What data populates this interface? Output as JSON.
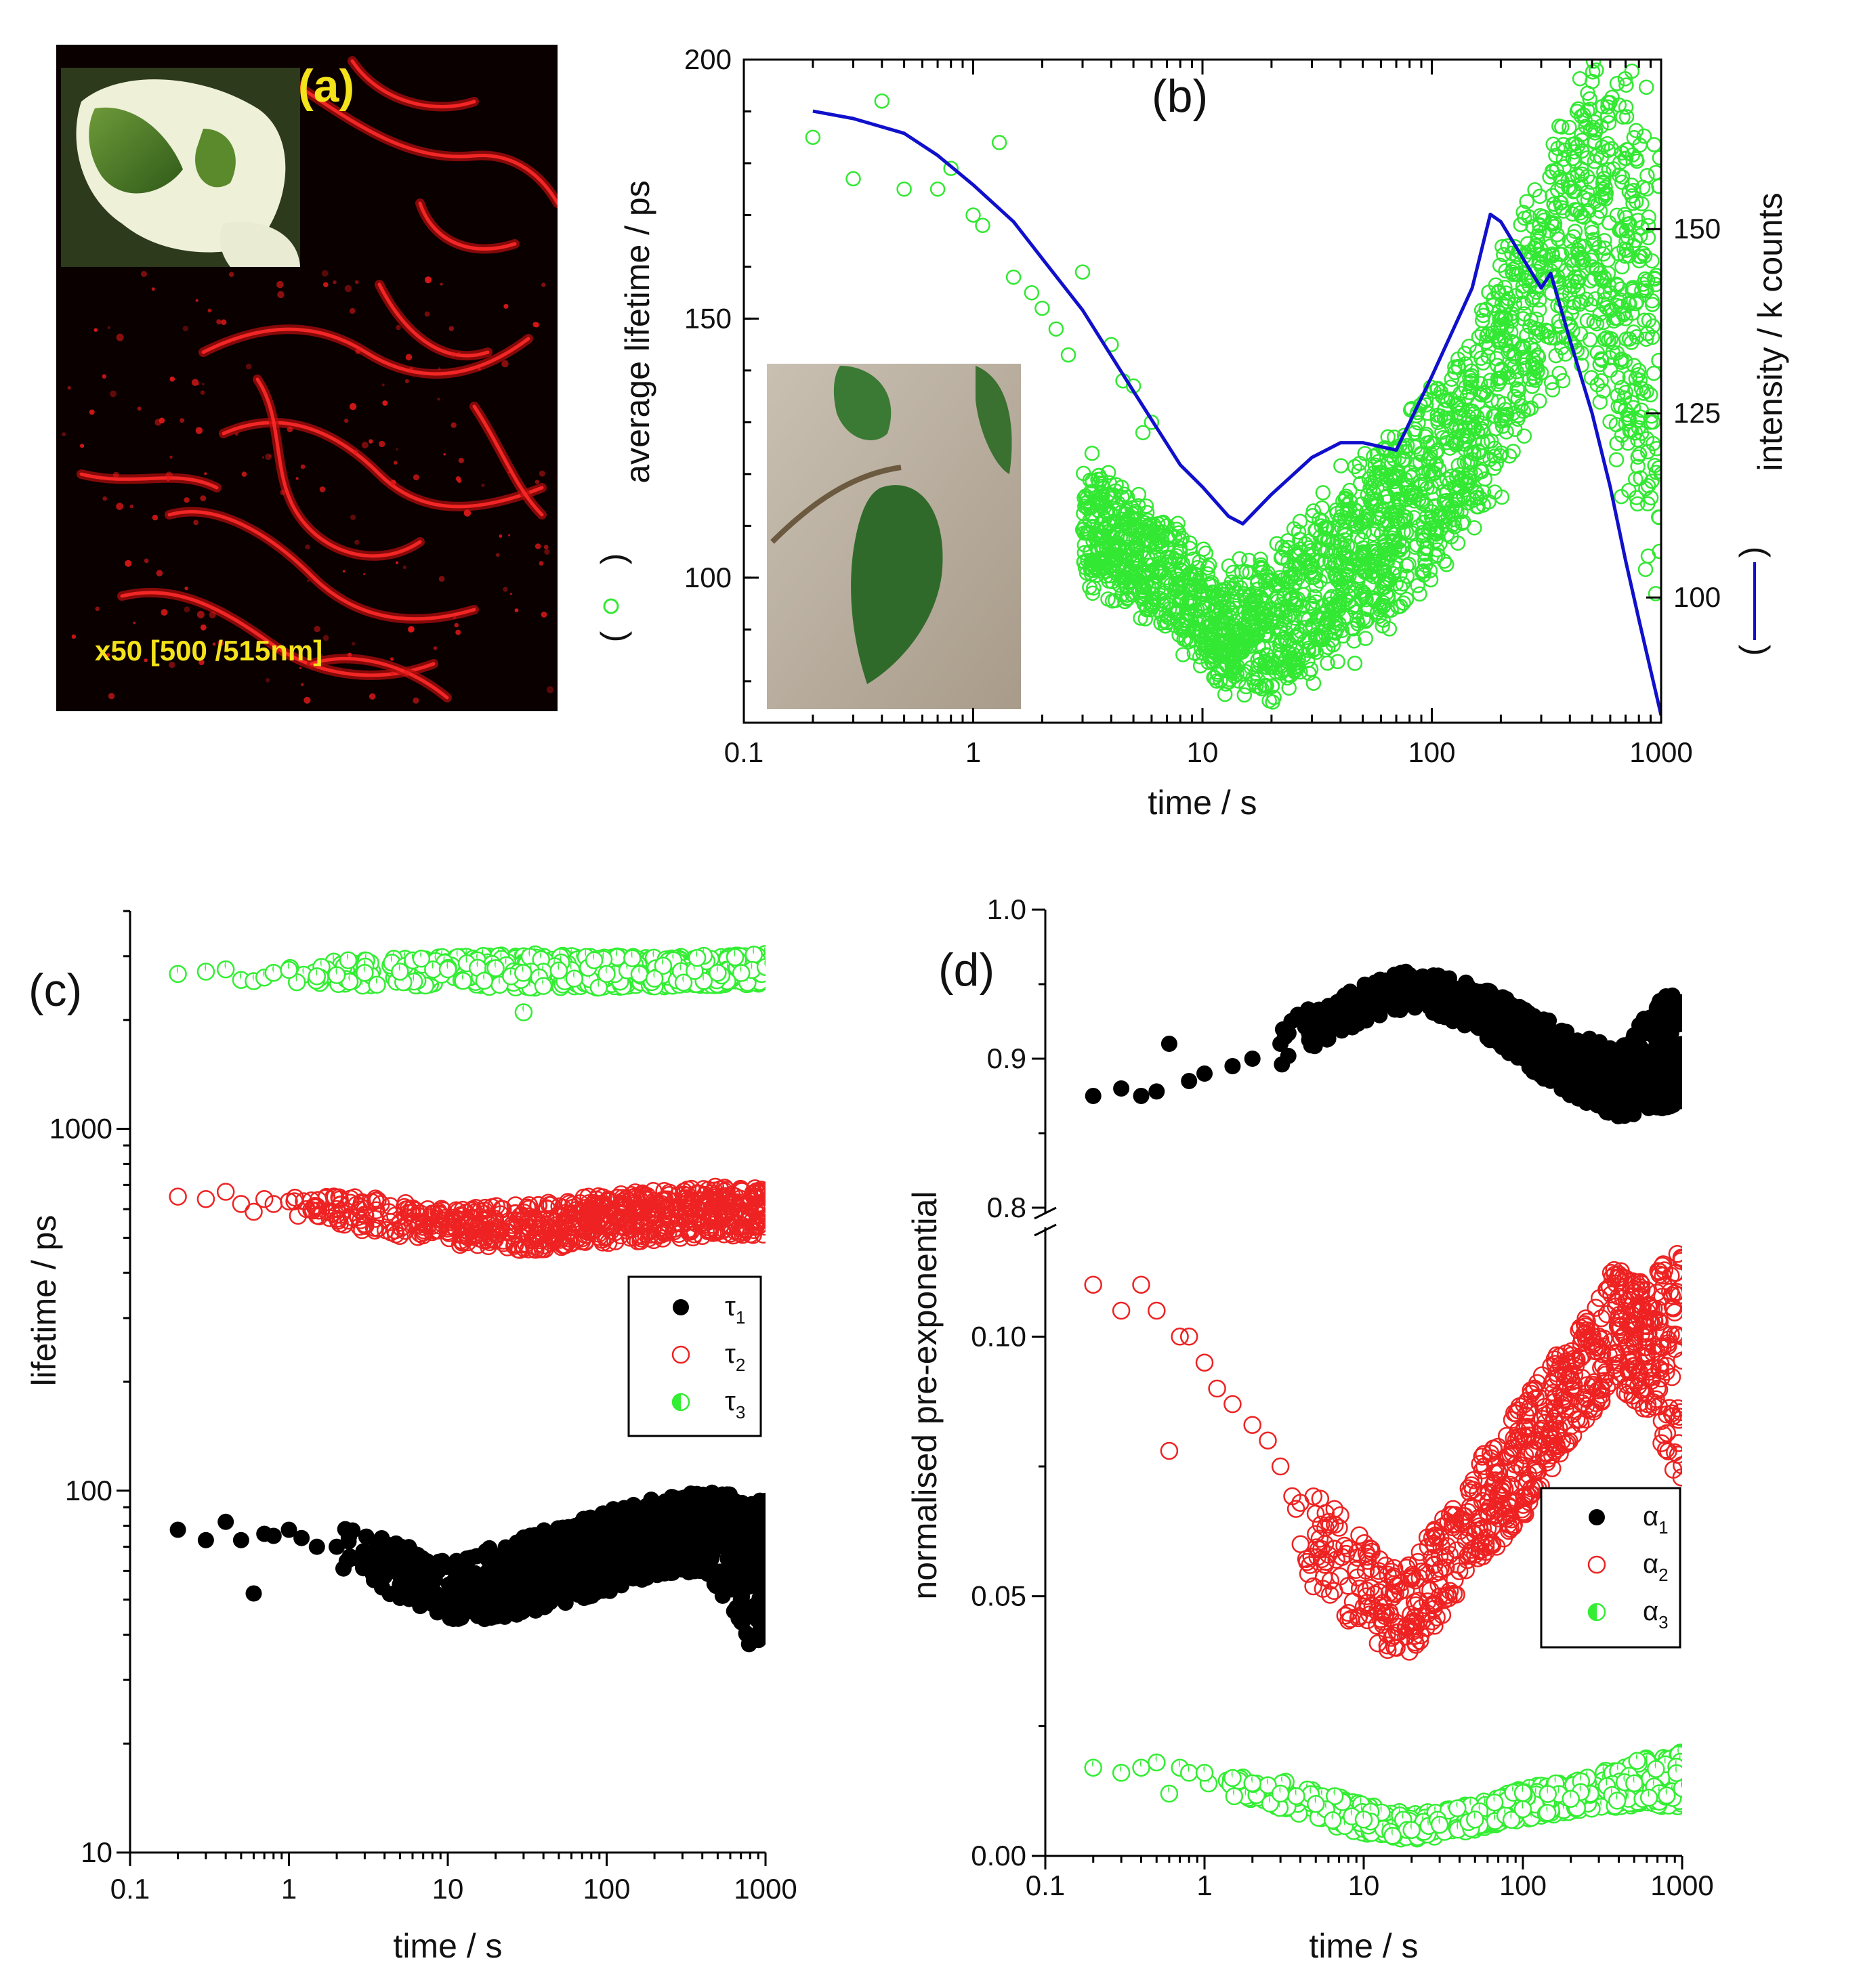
{
  "panels": {
    "a": {
      "label": "(a)",
      "caption": "x50 [500 /515nm]",
      "colors": {
        "background": "#0a0000",
        "fluorescence": "#e01010",
        "label": "#f4e21a"
      },
      "inset_icon": "variegated-ivy-leaf-photo"
    },
    "b": {
      "label": "(b)",
      "inset_icon": "ficus-leaf-photo"
    },
    "c": {
      "label": "(c)"
    },
    "d": {
      "label": "(d)"
    }
  },
  "chart_data": [
    {
      "id": "b",
      "type": "scatter",
      "xlabel": "time / s",
      "ylabel": "average lifetime / ps",
      "y2label": "intensity / k counts",
      "xscale": "log",
      "xlim": [
        0.1,
        1000
      ],
      "ylim": [
        72,
        200
      ],
      "y2lim": [
        83,
        173
      ],
      "xticks": [
        "0.1",
        "1",
        "10",
        "100",
        "1000"
      ],
      "yticks": [
        "100",
        "150",
        "200"
      ],
      "y2ticks": [
        "100",
        "125",
        "150"
      ],
      "legend": {
        "placement": "left-axis-marker and right-axis-marker",
        "lifetime_marker": "open-circle",
        "intensity_marker": "line"
      },
      "colors": {
        "lifetime": "#33e833",
        "intensity": "#1010cc"
      },
      "series": [
        {
          "kind": "scatter-open-circle",
          "axis": "left",
          "x": [
            0.2,
            0.3,
            0.4,
            0.5,
            0.7,
            0.8,
            1.0,
            1.1,
            1.3,
            1.5,
            1.8,
            2.0,
            2.3,
            2.6,
            3.0,
            3.3,
            4.0,
            4.5,
            5.0,
            5.5,
            6.0,
            7.0,
            8.0,
            10,
            12,
            15,
            20,
            25,
            30,
            40,
            50,
            70,
            90,
            120,
            150,
            200,
            250,
            300,
            400,
            500,
            600,
            700,
            800,
            900,
            1000
          ],
          "y": [
            185,
            177,
            192,
            175,
            175,
            179,
            170,
            168,
            184,
            158,
            155,
            152,
            148,
            143,
            159,
            124,
            145,
            138,
            137,
            128,
            130,
            110,
            105,
            95,
            90,
            87,
            92,
            95,
            100,
            103,
            105,
            112,
            118,
            125,
            130,
            140,
            150,
            160,
            165,
            160,
            155,
            150,
            140,
            130,
            120
          ],
          "band": {
            "x": [
              3,
              5,
              8,
              12,
              20,
              40,
              70,
              100,
              150,
              200,
              300,
              400,
              500,
              700,
              1000
            ],
            "low": [
              100,
              95,
              88,
              80,
              78,
              85,
              95,
              102,
              112,
              120,
              135,
              145,
              140,
              120,
              100
            ],
            "high": [
              120,
              115,
              108,
              100,
              102,
              118,
              125,
              135,
              145,
              160,
              175,
              190,
              200,
              195,
              180
            ]
          }
        },
        {
          "kind": "line",
          "axis": "right",
          "x": [
            0.2,
            0.3,
            0.5,
            0.7,
            1.0,
            1.5,
            2.0,
            3.0,
            5.0,
            8.0,
            10,
            13,
            15,
            20,
            30,
            40,
            50,
            70,
            100,
            150,
            180,
            200,
            250,
            300,
            330,
            400,
            500,
            600,
            700,
            800,
            1000
          ],
          "y": [
            166,
            165,
            163,
            160,
            156,
            151,
            146,
            139,
            128,
            118,
            115,
            111,
            110,
            114,
            119,
            121,
            121,
            120,
            130,
            142,
            152,
            151,
            146,
            142,
            144,
            135,
            125,
            115,
            105,
            97,
            84
          ]
        }
      ]
    },
    {
      "id": "c",
      "type": "scatter",
      "xlabel": "time / s",
      "ylabel": "lifetime / ps",
      "xscale": "log",
      "yscale": "log",
      "xlim": [
        0.1,
        1000
      ],
      "ylim": [
        10,
        4000
      ],
      "xticks": [
        "0.1",
        "1",
        "10",
        "100",
        "1000"
      ],
      "yticks": [
        "10",
        "100",
        "1000"
      ],
      "legend": {
        "placement": "middle-right",
        "entries": [
          "τ1",
          "τ2",
          "τ3"
        ],
        "sub": [
          "1",
          "2",
          "3"
        ],
        "base": "τ"
      },
      "colors": {
        "tau1": "#000000",
        "tau2": "#ee2222",
        "tau3": "#33ee33"
      },
      "series": [
        {
          "kind": "filled",
          "x": [
            0.2,
            0.3,
            0.4,
            0.5,
            0.6,
            0.7,
            0.8,
            1.0,
            1.2,
            1.5,
            2.0,
            2.5,
            3.0,
            4.0,
            5.0,
            6.0,
            8.0,
            10,
            15,
            20,
            30,
            50,
            70,
            100,
            150,
            200,
            300,
            400,
            500,
            600,
            700,
            800,
            900,
            1000
          ],
          "y": [
            78,
            73,
            82,
            73,
            52,
            76,
            75,
            78,
            74,
            70,
            70,
            65,
            62,
            58,
            55,
            55,
            52,
            50,
            47,
            50,
            55,
            60,
            62,
            65,
            70,
            75,
            78,
            80,
            75,
            65,
            50,
            45,
            40,
            55
          ],
          "band": {
            "x": [
              2,
              5,
              10,
              20,
              50,
              100,
              200,
              400,
              600,
              800,
              1000
            ],
            "low": [
              60,
              50,
              44,
              44,
              48,
              52,
              58,
              60,
              48,
              36,
              40
            ],
            "high": [
              80,
              72,
              65,
              70,
              80,
              88,
              95,
              100,
              98,
              92,
              95
            ]
          }
        },
        {
          "kind": "open",
          "x": [
            0.2,
            0.3,
            0.4,
            0.5,
            0.6,
            0.7,
            0.8,
            1.0,
            1.5,
            2.0,
            3.0,
            5.0,
            8.0,
            10,
            20,
            30,
            50,
            100,
            200,
            500,
            1000
          ],
          "y": [
            650,
            640,
            670,
            620,
            590,
            640,
            620,
            630,
            610,
            600,
            580,
            550,
            540,
            520,
            510,
            520,
            530,
            540,
            560,
            580,
            590
          ],
          "band": {
            "x": [
              1,
              3,
              10,
              30,
              100,
              300,
              1000
            ],
            "low": [
              580,
              520,
              480,
              460,
              480,
              500,
              510
            ],
            "high": [
              670,
              650,
              600,
              620,
              660,
              690,
              700
            ]
          }
        },
        {
          "kind": "half",
          "x": [
            0.2,
            0.3,
            0.4,
            0.5,
            0.6,
            0.7,
            0.8,
            1.0,
            1.5,
            2.0,
            3.0,
            5.0,
            10,
            20,
            30,
            50,
            100,
            200,
            500,
            1000
          ],
          "y": [
            2680,
            2720,
            2760,
            2580,
            2560,
            2620,
            2700,
            2750,
            2640,
            2660,
            2700,
            2720,
            2760,
            2780,
            2100,
            2740,
            2680,
            2600,
            2700,
            2800
          ],
          "band": {
            "x": [
              1,
              3,
              10,
              30,
              100,
              300,
              1000
            ],
            "low": [
              2520,
              2480,
              2480,
              2450,
              2450,
              2480,
              2520
            ],
            "high": [
              2900,
              2950,
              3000,
              3050,
              3000,
              3000,
              3050
            ]
          }
        }
      ]
    },
    {
      "id": "d",
      "type": "scatter",
      "xlabel": "time / s",
      "ylabel": "normalised pre-exponential",
      "xscale": "log",
      "xlim": [
        0.1,
        1000
      ],
      "ylim_lower": [
        0.0,
        0.12
      ],
      "ylim_upper": [
        0.8,
        1.0
      ],
      "broken_axis": true,
      "xticks": [
        "0.1",
        "1",
        "10",
        "100",
        "1000"
      ],
      "yticks_lower": [
        "0.00",
        "0.05",
        "0.10"
      ],
      "yticks_upper": [
        "0.8",
        "0.9",
        "1.0"
      ],
      "legend": {
        "placement": "middle-right",
        "entries": [
          "α1",
          "α2",
          "α3"
        ],
        "sub": [
          "1",
          "2",
          "3"
        ],
        "base": "α"
      },
      "colors": {
        "alpha1": "#000000",
        "alpha2": "#ee2222",
        "alpha3": "#33ee33"
      },
      "series": [
        {
          "kind": "filled",
          "axis": "upper",
          "x": [
            0.2,
            0.3,
            0.4,
            0.5,
            0.6,
            0.8,
            1.0,
            1.5,
            2.0,
            3.0,
            5.0,
            8.0,
            10,
            15,
            20,
            30,
            50,
            100,
            200,
            300,
            500,
            700,
            800,
            1000
          ],
          "y": [
            0.875,
            0.88,
            0.875,
            0.878,
            0.91,
            0.885,
            0.89,
            0.895,
            0.9,
            0.91,
            0.925,
            0.94,
            0.945,
            0.952,
            0.95,
            0.945,
            0.935,
            0.915,
            0.895,
            0.88,
            0.87,
            0.925,
            0.94,
            0.89
          ],
          "band": {
            "x": [
              3,
              10,
              20,
              50,
              100,
              200,
              400,
              600,
              800,
              1000
            ],
            "low": [
              0.895,
              0.925,
              0.935,
              0.92,
              0.895,
              0.875,
              0.86,
              0.865,
              0.865,
              0.87
            ],
            "high": [
              0.925,
              0.95,
              0.96,
              0.95,
              0.935,
              0.92,
              0.905,
              0.93,
              0.945,
              0.94
            ]
          }
        },
        {
          "kind": "open",
          "axis": "lower",
          "x": [
            0.2,
            0.3,
            0.4,
            0.5,
            0.6,
            0.7,
            0.8,
            1.0,
            1.2,
            1.5,
            2.0,
            2.5,
            3.0,
            4.0,
            5.0,
            6.0,
            8.0,
            10,
            15,
            20,
            30,
            50,
            70,
            100,
            150,
            200,
            300,
            400,
            500,
            600,
            700,
            800,
            1000
          ],
          "y": [
            0.11,
            0.105,
            0.11,
            0.105,
            0.078,
            0.1,
            0.1,
            0.095,
            0.09,
            0.087,
            0.083,
            0.08,
            0.075,
            0.068,
            0.062,
            0.058,
            0.052,
            0.048,
            0.042,
            0.045,
            0.05,
            0.058,
            0.065,
            0.072,
            0.082,
            0.09,
            0.1,
            0.112,
            0.105,
            0.098,
            0.09,
            0.085,
            0.1
          ],
          "band": {
            "x": [
              3,
              5,
              8,
              12,
              18,
              30,
              50,
              100,
              200,
              400,
              600,
              800,
              1000
            ],
            "low": [
              0.055,
              0.05,
              0.045,
              0.04,
              0.038,
              0.045,
              0.055,
              0.065,
              0.08,
              0.09,
              0.085,
              0.075,
              0.07
            ],
            "high": [
              0.08,
              0.07,
              0.065,
              0.058,
              0.055,
              0.065,
              0.075,
              0.088,
              0.1,
              0.115,
              0.11,
              0.115,
              0.118
            ]
          }
        },
        {
          "kind": "half",
          "axis": "lower",
          "x": [
            0.2,
            0.3,
            0.4,
            0.5,
            0.6,
            0.7,
            0.8,
            1.0,
            1.5,
            2.0,
            3.0,
            5.0,
            10,
            20,
            30,
            50,
            100,
            200,
            500,
            1000
          ],
          "y": [
            0.017,
            0.016,
            0.017,
            0.018,
            0.012,
            0.017,
            0.016,
            0.016,
            0.015,
            0.014,
            0.012,
            0.01,
            0.007,
            0.005,
            0.006,
            0.007,
            0.009,
            0.011,
            0.014,
            0.013
          ],
          "band": {
            "x": [
              1,
              3,
              10,
              20,
              50,
              100,
              300,
              600,
              1000
            ],
            "low": [
              0.013,
              0.009,
              0.004,
              0.003,
              0.005,
              0.007,
              0.009,
              0.01,
              0.009
            ],
            "high": [
              0.017,
              0.015,
              0.01,
              0.008,
              0.01,
              0.013,
              0.016,
              0.019,
              0.02
            ]
          }
        }
      ]
    }
  ]
}
